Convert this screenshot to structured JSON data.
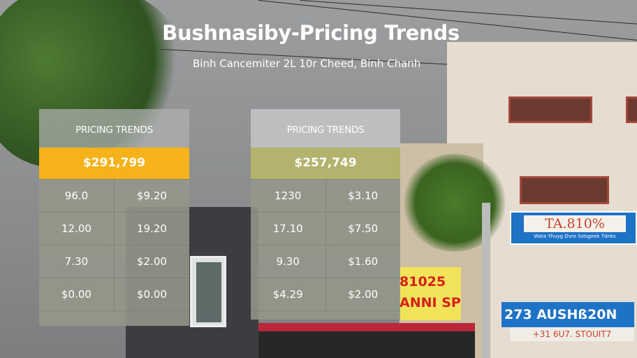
{
  "header": {
    "title": "Bushnasiby-Pricing Trends",
    "subtitle": "Binh Cancemiter 2L 10r Cheed, Binh Chanh"
  },
  "tables": [
    {
      "heading": "PRICING TRENDS",
      "price": "$291,799",
      "price_color": "#f5b21a",
      "rows": [
        [
          "96.0",
          "$9.20"
        ],
        [
          "12.00",
          "19.20"
        ],
        [
          "7.30",
          "$2.00"
        ],
        [
          "$0.00",
          "$0.00"
        ]
      ]
    },
    {
      "heading": "PRICING TRENDS",
      "price": "$257,749",
      "price_color": "#b4b36e",
      "rows": [
        [
          "1230",
          "$3.10"
        ],
        [
          "17.10",
          "$7.50"
        ],
        [
          "9.30",
          "$1.60"
        ],
        [
          "$4.29",
          "$2.00"
        ]
      ]
    }
  ],
  "background_signs": {
    "sign1": "TA.810%",
    "sign1_sub": "Wata Yhuyg Dvro   Sstsgeek Tdnks",
    "sign2": "81025",
    "sign2_sub": "ANNI SP",
    "sign3": "273 AUSHß20N",
    "sign4": "+31 6U7. STOUIT7"
  }
}
